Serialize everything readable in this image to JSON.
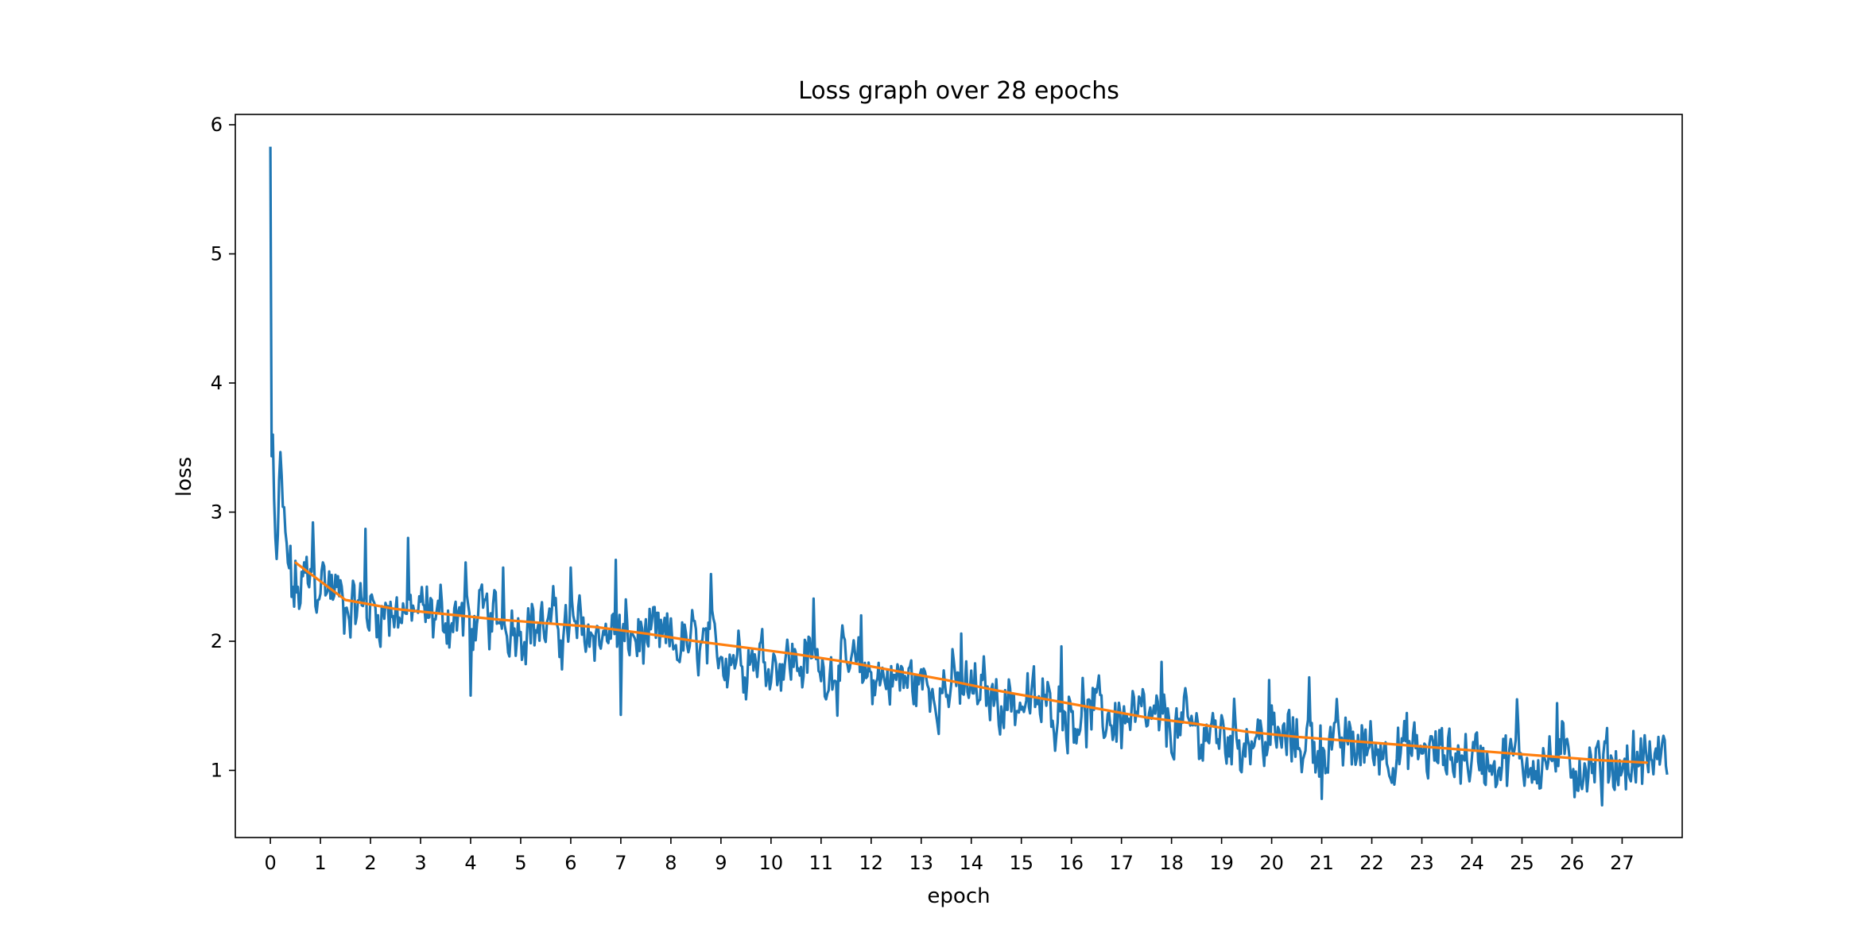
{
  "chart_data": {
    "type": "line",
    "title": "Loss graph over 28 epochs",
    "xlabel": "epoch",
    "ylabel": "loss",
    "xlim": [
      -0.7,
      28.2
    ],
    "ylim": [
      0.48,
      6.08
    ],
    "xticks": [
      0,
      1,
      2,
      3,
      4,
      5,
      6,
      7,
      8,
      9,
      10,
      11,
      12,
      13,
      14,
      15,
      16,
      17,
      18,
      19,
      20,
      21,
      22,
      23,
      24,
      25,
      26,
      27
    ],
    "yticks": [
      1,
      2,
      3,
      4,
      5,
      6
    ],
    "grid": false,
    "legend": "none",
    "colors": {
      "raw": "#1f77b4",
      "average": "#ff7f0e"
    },
    "series": [
      {
        "style": "raw-loss",
        "x_start": 0,
        "x_end": 27.9,
        "points_per_epoch": 40,
        "anchors": [
          [
            0.0,
            5.83
          ],
          [
            0.02,
            3.4
          ],
          [
            0.05,
            3.6
          ],
          [
            0.08,
            3.0
          ],
          [
            0.12,
            2.6
          ],
          [
            0.2,
            3.2
          ],
          [
            0.35,
            2.55
          ],
          [
            0.5,
            2.35
          ],
          [
            1.0,
            2.5
          ],
          [
            1.5,
            2.3
          ],
          [
            2.0,
            2.25
          ],
          [
            3.0,
            2.22
          ],
          [
            4.0,
            2.17
          ],
          [
            5.0,
            2.14
          ],
          [
            6.0,
            2.1
          ],
          [
            7.0,
            2.04
          ],
          [
            8.0,
            1.98
          ],
          [
            9.0,
            1.93
          ],
          [
            10.0,
            1.87
          ],
          [
            11.0,
            1.82
          ],
          [
            12.0,
            1.74
          ],
          [
            13.0,
            1.67
          ],
          [
            14.0,
            1.61
          ],
          [
            15.0,
            1.53
          ],
          [
            16.0,
            1.46
          ],
          [
            17.0,
            1.4
          ],
          [
            18.0,
            1.34
          ],
          [
            19.0,
            1.28
          ],
          [
            20.0,
            1.24
          ],
          [
            21.0,
            1.21
          ],
          [
            22.0,
            1.18
          ],
          [
            23.0,
            1.14
          ],
          [
            24.0,
            1.11
          ],
          [
            25.0,
            1.08
          ],
          [
            26.0,
            1.06
          ],
          [
            27.0,
            1.05
          ],
          [
            27.9,
            1.1
          ]
        ],
        "noise_amplitude": 0.22,
        "extremes": [
          [
            0.18,
            3.25
          ],
          [
            0.85,
            2.92
          ],
          [
            1.9,
            2.87
          ],
          [
            2.75,
            2.8
          ],
          [
            3.9,
            2.61
          ],
          [
            4.65,
            2.57
          ],
          [
            6.0,
            2.57
          ],
          [
            6.9,
            2.63
          ],
          [
            8.8,
            2.52
          ],
          [
            10.85,
            2.33
          ],
          [
            11.8,
            2.2
          ],
          [
            13.8,
            2.06
          ],
          [
            15.8,
            1.96
          ],
          [
            17.8,
            1.84
          ],
          [
            19.95,
            1.7
          ],
          [
            20.75,
            1.72
          ],
          [
            24.9,
            1.55
          ],
          [
            25.7,
            1.52
          ],
          [
            7.0,
            1.43
          ],
          [
            4.0,
            1.58
          ],
          [
            21.0,
            0.78
          ],
          [
            26.6,
            0.73
          ]
        ]
      },
      {
        "style": "epoch-average",
        "x": [
          0.5,
          1.5,
          2.5,
          3.5,
          4.5,
          5.5,
          6.5,
          7.5,
          8.5,
          9.5,
          10.5,
          11.5,
          12.5,
          13.5,
          14.5,
          15.5,
          16.5,
          17.5,
          18.5,
          19.5,
          20.5,
          21.5,
          22.5,
          23.5,
          24.5,
          25.5,
          26.5,
          27.5
        ],
        "values": [
          2.61,
          2.32,
          2.25,
          2.21,
          2.17,
          2.14,
          2.11,
          2.06,
          2.0,
          1.95,
          1.9,
          1.84,
          1.77,
          1.7,
          1.62,
          1.55,
          1.48,
          1.41,
          1.36,
          1.3,
          1.26,
          1.23,
          1.2,
          1.17,
          1.14,
          1.11,
          1.08,
          1.06
        ]
      }
    ]
  }
}
